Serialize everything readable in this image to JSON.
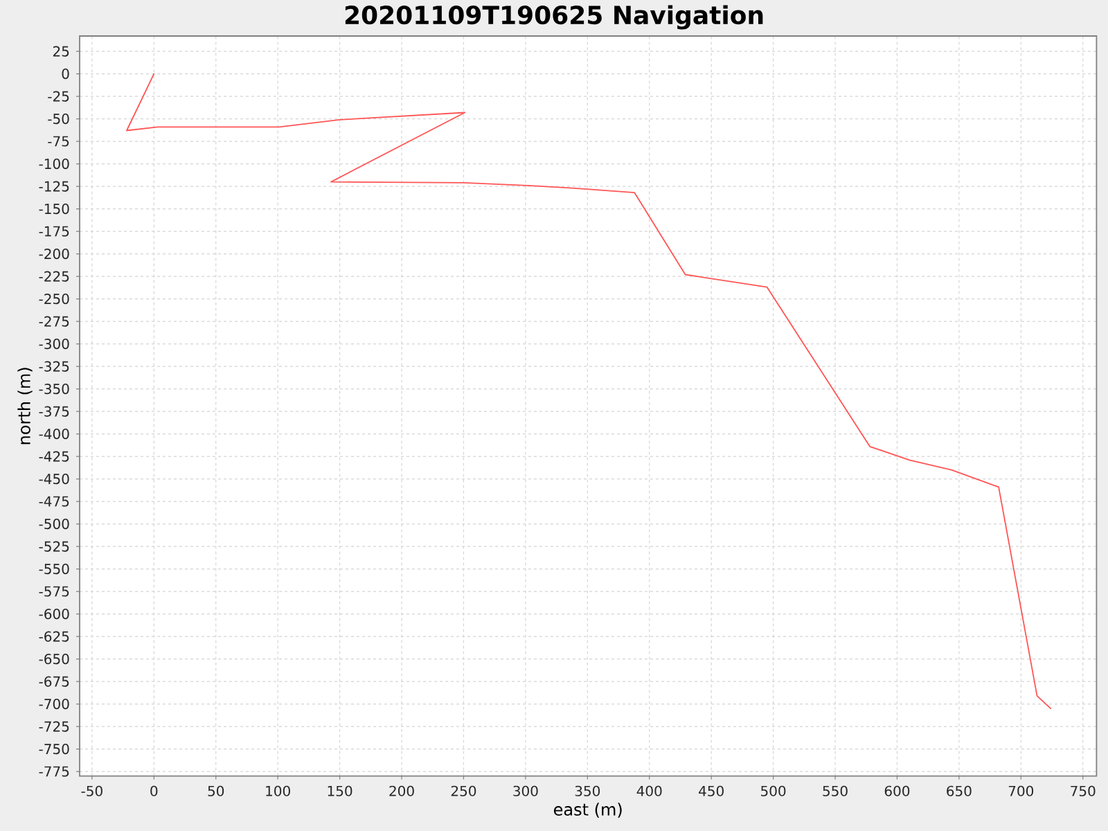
{
  "chart_data": {
    "type": "line",
    "title": "20201109T190625 Navigation",
    "xlabel": "east (m)",
    "ylabel": "north (m)",
    "x": [
      0,
      -22,
      3,
      101,
      150,
      251,
      143,
      250,
      301,
      338,
      388,
      429,
      495,
      578,
      610,
      644,
      682,
      713,
      724
    ],
    "series": [
      {
        "color": "#ff5555",
        "values": [
          0,
          -63,
          -59,
          -59,
          -51,
          -43,
          -120,
          -121,
          -124,
          -127,
          -132,
          -223,
          -237,
          -414,
          -429,
          -440,
          -459,
          -691,
          -705
        ]
      }
    ],
    "xlim": [
      -60,
      761
    ],
    "ylim": [
      -780,
      42
    ],
    "xticks": [
      -50,
      0,
      50,
      100,
      150,
      200,
      250,
      300,
      350,
      400,
      450,
      500,
      550,
      600,
      650,
      700,
      750
    ],
    "yticks": [
      -775,
      -750,
      -725,
      -700,
      -675,
      -650,
      -625,
      -600,
      -575,
      -550,
      -525,
      -500,
      -475,
      -450,
      -425,
      -400,
      -375,
      -350,
      -325,
      -300,
      -275,
      -250,
      -225,
      -200,
      -175,
      -150,
      -125,
      -100,
      -75,
      -50,
      -25,
      0,
      25
    ],
    "grid": true,
    "line_style": "solid"
  }
}
